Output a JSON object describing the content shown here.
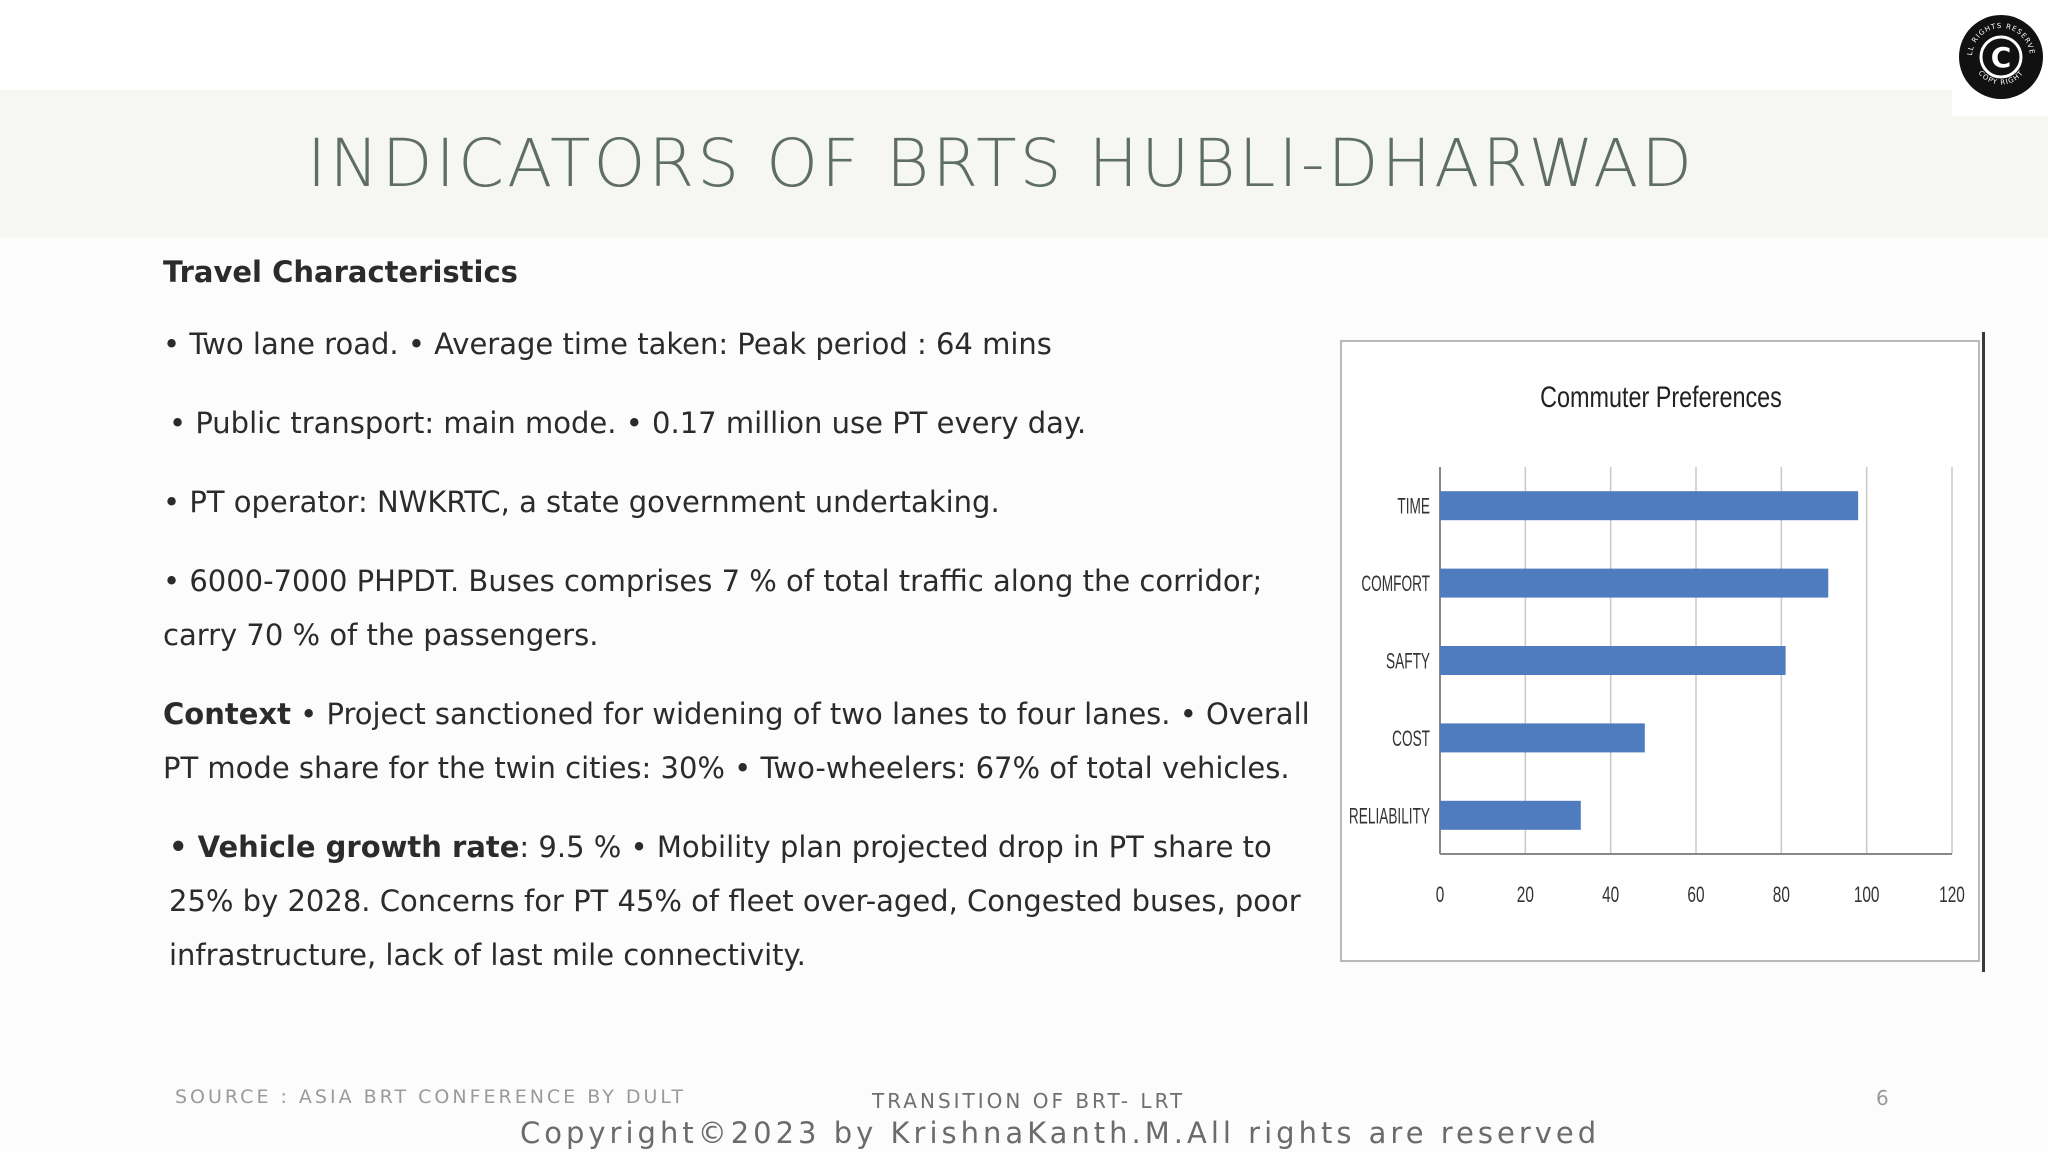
{
  "slide": {
    "title": "INDICATORS OF BRTS HUBLI-DHARWAD",
    "page_number": "6"
  },
  "seal": {
    "symbol": "C",
    "text_top": "ALL RIGHTS RESERVED",
    "text_bottom": "COPY RIGHT"
  },
  "content": {
    "heading": "Travel Characteristics",
    "p1": "• Two lane road. • Average time taken: Peak period : 64 mins",
    "p2": " • Public transport: main mode. • 0.17 million use PT every day.",
    "p3": "• PT operator: NWKRTC, a state government undertaking.",
    "p4": "• 6000-7000 PHPDT. Buses comprises 7 % of total traffic along the corridor; carry 70 % of the passengers.",
    "p5_bold": "Context",
    "p5_rest": " • Project sanctioned for widening of two lanes to four lanes. • Overall PT mode share for the twin cities: 30% • Two-wheelers: 67% of total vehicles.",
    "p6_bold": "• Vehicle growth rate",
    "p6_rest": ": 9.5 % • Mobility plan projected drop in PT share to 25% by 2028. Concerns for PT 45% of fleet over-aged, Congested buses, poor infrastructure, lack of last mile connectivity."
  },
  "chart_data": {
    "type": "bar",
    "orientation": "horizontal",
    "title": "Commuter Preferences",
    "categories": [
      "TIME",
      "COMFORT",
      "SAFTY",
      "COST",
      "RELIABILITY"
    ],
    "values": [
      98,
      91,
      81,
      48,
      33
    ],
    "xlim": [
      0,
      120
    ],
    "xticks": [
      "0",
      "20",
      "40",
      "60",
      "80",
      "100",
      "120"
    ],
    "grid": true,
    "bar_color": "#4f7cbf"
  },
  "footer": {
    "source": "SOURCE : ASIA BRT CONFERENCE BY DULT",
    "center": "TRANSITION OF BRT- LRT",
    "copyright": "Copyright©2023 by KrishnaKanth.M.All rights are reserved"
  }
}
